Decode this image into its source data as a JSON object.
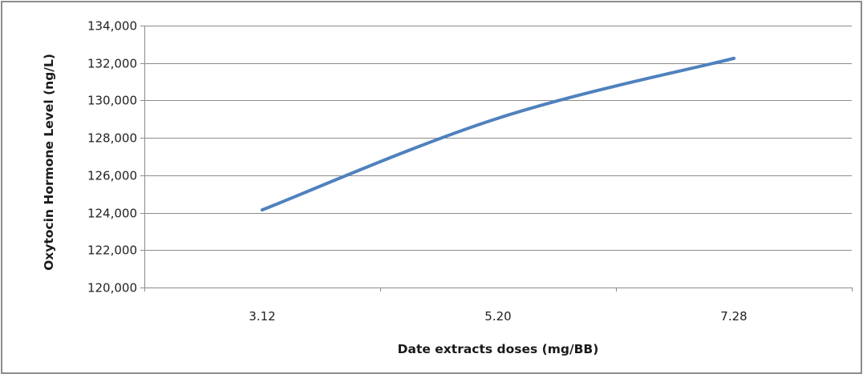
{
  "chart_data": {
    "type": "line",
    "title": "",
    "xlabel": "Date extracts doses (mg/BB)",
    "ylabel": "Oxytocin Hormone Level (ng/L)",
    "categories": [
      "3.12",
      "5.20",
      "7.28"
    ],
    "series": [
      {
        "values": [
          124150,
          129050,
          132250
        ],
        "color": "#4f81bd"
      }
    ],
    "ylim": [
      120000,
      134000
    ],
    "yticks": [
      120000,
      122000,
      124000,
      126000,
      128000,
      130000,
      132000,
      134000
    ],
    "ytick_labels": [
      "120,000",
      "122,000",
      "124,000",
      "126,000",
      "128,000",
      "130,000",
      "132,000",
      "134,000"
    ],
    "grid": true,
    "legend": "none",
    "gridline_color": "#8c8c8c",
    "axis_color": "#8c8c8c"
  }
}
